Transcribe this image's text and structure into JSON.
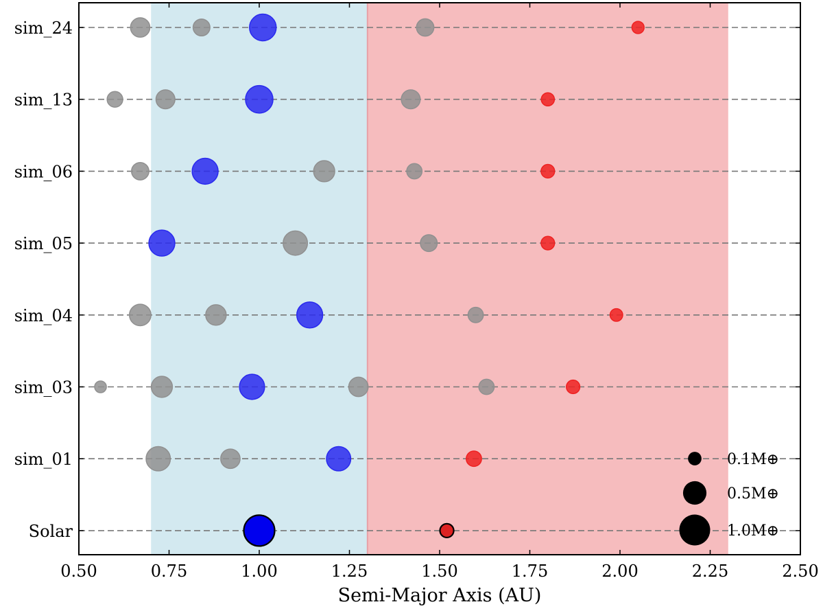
{
  "chart_data": {
    "type": "scatter",
    "xlabel": "Semi-Major Axis (AU)",
    "xlim": [
      0.5,
      2.5
    ],
    "xticks": [
      "0.50",
      "0.75",
      "1.00",
      "1.25",
      "1.50",
      "1.75",
      "2.00",
      "2.25",
      "2.50"
    ],
    "xtick_values": [
      0.5,
      0.75,
      1.0,
      1.25,
      1.5,
      1.75,
      2.0,
      2.25,
      2.5
    ],
    "grid": "horizontal dashed lines per row",
    "regions": [
      {
        "from": 0.7,
        "to": 1.3,
        "color": "#d3e9f0"
      },
      {
        "from": 1.3,
        "to": 2.3,
        "color": "#f6bcbe"
      }
    ],
    "rows": [
      {
        "label": "Solar",
        "planets": [
          {
            "a": 1.0,
            "mass": 1.0,
            "color": "#0000ee",
            "edge": "#000000"
          },
          {
            "a": 1.52,
            "mass": 0.107,
            "color": "#dd2222",
            "edge": "#000000"
          }
        ]
      },
      {
        "label": "sim_01",
        "planets": [
          {
            "a": 0.72,
            "mass": 0.55,
            "color": "#909090"
          },
          {
            "a": 0.92,
            "mass": 0.3,
            "color": "#909090"
          },
          {
            "a": 1.22,
            "mass": 0.55,
            "color": "#2a2aee"
          },
          {
            "a": 1.595,
            "mass": 0.15,
            "color": "#ee2222"
          }
        ]
      },
      {
        "label": "sim_03",
        "planets": [
          {
            "a": 0.56,
            "mass": 0.06,
            "color": "#909090"
          },
          {
            "a": 0.73,
            "mass": 0.38,
            "color": "#909090"
          },
          {
            "a": 0.98,
            "mass": 0.6,
            "color": "#2a2aee"
          },
          {
            "a": 1.275,
            "mass": 0.3,
            "color": "#909090"
          },
          {
            "a": 1.63,
            "mass": 0.15,
            "color": "#909090"
          },
          {
            "a": 1.87,
            "mass": 0.1,
            "color": "#ee2222"
          }
        ]
      },
      {
        "label": "sim_04",
        "planets": [
          {
            "a": 0.67,
            "mass": 0.4,
            "color": "#909090"
          },
          {
            "a": 0.88,
            "mass": 0.35,
            "color": "#909090"
          },
          {
            "a": 1.14,
            "mass": 0.65,
            "color": "#2a2aee"
          },
          {
            "a": 1.6,
            "mass": 0.15,
            "color": "#909090"
          },
          {
            "a": 1.99,
            "mass": 0.08,
            "color": "#ee2222"
          }
        ]
      },
      {
        "label": "sim_05",
        "planets": [
          {
            "a": 0.73,
            "mass": 0.65,
            "color": "#2a2aee"
          },
          {
            "a": 1.1,
            "mass": 0.55,
            "color": "#909090"
          },
          {
            "a": 1.47,
            "mass": 0.2,
            "color": "#909090"
          },
          {
            "a": 1.8,
            "mass": 0.1,
            "color": "#ee2222"
          }
        ]
      },
      {
        "label": "sim_06",
        "planets": [
          {
            "a": 0.67,
            "mass": 0.22,
            "color": "#909090"
          },
          {
            "a": 0.85,
            "mass": 0.65,
            "color": "#2a2aee"
          },
          {
            "a": 1.18,
            "mass": 0.38,
            "color": "#909090"
          },
          {
            "a": 1.43,
            "mass": 0.15,
            "color": "#909090"
          },
          {
            "a": 1.8,
            "mass": 0.1,
            "color": "#ee2222"
          }
        ]
      },
      {
        "label": "sim_13",
        "planets": [
          {
            "a": 0.6,
            "mass": 0.16,
            "color": "#909090"
          },
          {
            "a": 0.74,
            "mass": 0.28,
            "color": "#909090"
          },
          {
            "a": 1.0,
            "mass": 0.75,
            "color": "#2a2aee"
          },
          {
            "a": 1.42,
            "mass": 0.28,
            "color": "#909090"
          },
          {
            "a": 1.8,
            "mass": 0.09,
            "color": "#ee2222"
          }
        ]
      },
      {
        "label": "sim_24",
        "planets": [
          {
            "a": 0.67,
            "mass": 0.3,
            "color": "#909090"
          },
          {
            "a": 0.84,
            "mass": 0.2,
            "color": "#909090"
          },
          {
            "a": 1.01,
            "mass": 0.7,
            "color": "#2a2aee"
          },
          {
            "a": 1.46,
            "mass": 0.22,
            "color": "#909090"
          },
          {
            "a": 2.05,
            "mass": 0.07,
            "color": "#ee2222"
          }
        ]
      }
    ],
    "legend": {
      "placement": "bottom-right",
      "items": [
        {
          "mass": 0.1,
          "label": "0.1M⊕"
        },
        {
          "mass": 0.5,
          "label": "0.5M⊕"
        },
        {
          "mass": 1.0,
          "label": "1.0M⊕"
        }
      ]
    }
  }
}
